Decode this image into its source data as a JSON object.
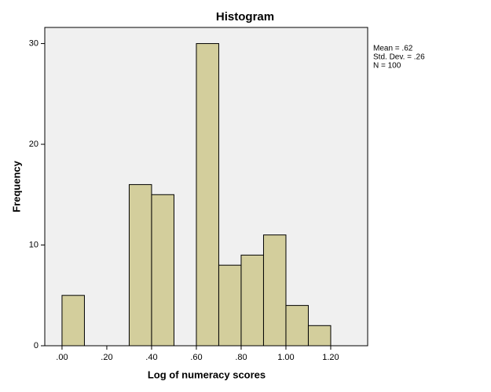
{
  "chart_data": {
    "type": "histogram",
    "title": "Histogram",
    "x_label": "Log of numeracy scores",
    "y_label": "Frequency",
    "bins": [
      0,
      0.1,
      0.2,
      0.3,
      0.4,
      0.5,
      0.6,
      0.7,
      0.8,
      0.9,
      1.0,
      1.1,
      1.2
    ],
    "values": [
      5,
      0,
      0,
      16,
      15,
      0,
      30,
      8,
      9,
      11,
      4,
      2
    ],
    "color": "#d3ce9c",
    "xlim": [
      -0.077,
      1.365
    ],
    "ylim": [
      0,
      31.6
    ],
    "xticks": [
      {
        "value": 0,
        "label": ".00"
      },
      {
        "value": 0.2,
        "label": ".20"
      },
      {
        "value": 0.4,
        "label": ".40"
      },
      {
        "value": 0.6,
        "label": ".60"
      },
      {
        "value": 0.8,
        "label": ".80"
      },
      {
        "value": 1.0,
        "label": "1.00"
      },
      {
        "value": 1.2,
        "label": "1.20"
      }
    ],
    "yticks": [
      0,
      10,
      20,
      30
    ],
    "annotations": [
      "Mean = .62",
      "Std. Dev. = .26",
      "N = 100"
    ]
  }
}
